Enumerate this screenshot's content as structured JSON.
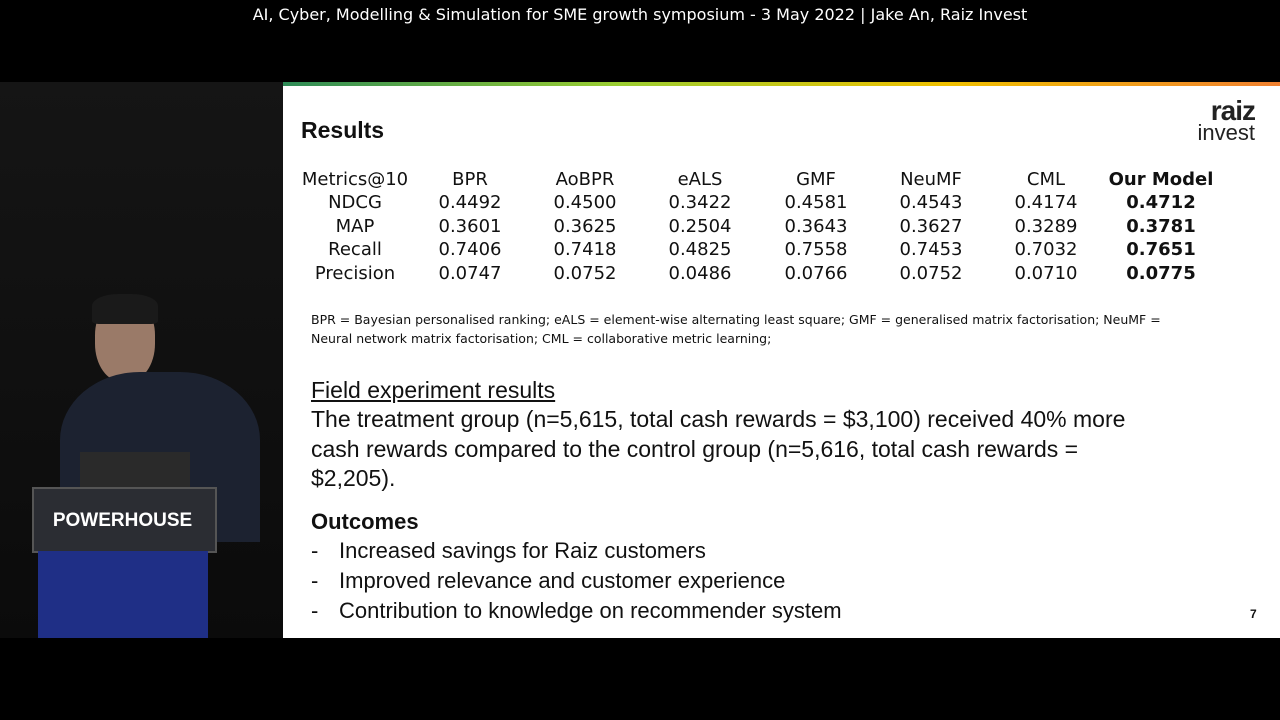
{
  "caption": "AI, Cyber, Modelling & Simulation for SME growth symposium - 3 May 2022 | Jake An, Raiz Invest",
  "podium": "POWERHOUSE",
  "slide": {
    "title": "Results",
    "logo": {
      "top": "raiz",
      "bottom": "invest"
    },
    "table": {
      "header": [
        "Metrics@10",
        "BPR",
        "AoBPR",
        "eALS",
        "GMF",
        "NeuMF",
        "CML",
        "Our Model"
      ],
      "rows": [
        [
          "NDCG",
          "0.4492",
          "0.4500",
          "0.3422",
          "0.4581",
          "0.4543",
          "0.4174",
          "0.4712"
        ],
        [
          "MAP",
          "0.3601",
          "0.3625",
          "0.2504",
          "0.3643",
          "0.3627",
          "0.3289",
          "0.3781"
        ],
        [
          "Recall",
          "0.7406",
          "0.7418",
          "0.4825",
          "0.7558",
          "0.7453",
          "0.7032",
          "0.7651"
        ],
        [
          "Precision",
          "0.0747",
          "0.0752",
          "0.0486",
          "0.0766",
          "0.0752",
          "0.0710",
          "0.0775"
        ]
      ]
    },
    "footnote": "BPR = Bayesian personalised ranking; eALS = element-wise alternating least square; GMF = generalised matrix factorisation; NeuMF = Neural network matrix factorisation; CML = collaborative metric learning;",
    "field": {
      "heading": "Field experiment results",
      "text": "The treatment group (n=5,615, total cash rewards = $3,100) received 40% more cash rewards compared to the control group (n=5,616, total cash rewards = $2,205)."
    },
    "outcomes": {
      "heading": "Outcomes",
      "bullet": "-",
      "items": [
        "Increased savings for Raiz customers",
        "Improved relevance and customer experience",
        "Contribution to knowledge on recommender system"
      ]
    },
    "page_number": "7"
  }
}
